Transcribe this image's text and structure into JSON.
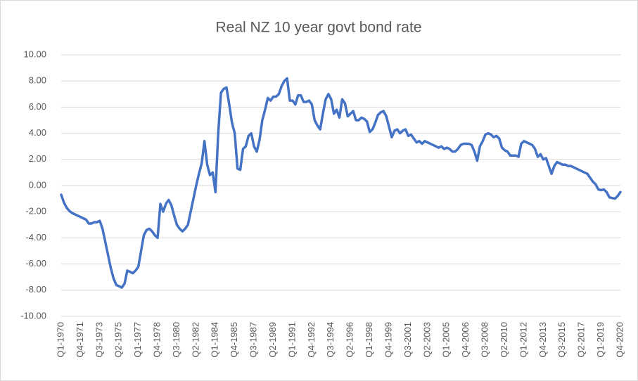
{
  "chart_data": {
    "type": "line",
    "title": "Real NZ 10 year govt bond rate",
    "categories": [
      "Q1-1970",
      null,
      null,
      null,
      null,
      null,
      null,
      "Q4-1971",
      null,
      null,
      null,
      null,
      null,
      null,
      "Q3-1973",
      null,
      null,
      null,
      null,
      null,
      null,
      "Q2-1975",
      null,
      null,
      null,
      null,
      null,
      null,
      "Q1-1977",
      null,
      null,
      null,
      null,
      null,
      null,
      "Q4-1978",
      null,
      null,
      null,
      null,
      null,
      null,
      "Q3-1980",
      null,
      null,
      null,
      null,
      null,
      null,
      "Q2-1982",
      null,
      null,
      null,
      null,
      null,
      null,
      "Q1-1984",
      null,
      null,
      null,
      null,
      null,
      null,
      "Q4-1985",
      null,
      null,
      null,
      null,
      null,
      null,
      "Q3-1987",
      null,
      null,
      null,
      null,
      null,
      null,
      "Q2-1989",
      null,
      null,
      null,
      null,
      null,
      null,
      "Q1-1991",
      null,
      null,
      null,
      null,
      null,
      null,
      "Q4-1992",
      null,
      null,
      null,
      null,
      null,
      null,
      "Q3-1994",
      null,
      null,
      null,
      null,
      null,
      null,
      "Q2-1996",
      null,
      null,
      null,
      null,
      null,
      null,
      "Q1-1998",
      null,
      null,
      null,
      null,
      null,
      null,
      "Q4-1999",
      null,
      null,
      null,
      null,
      null,
      null,
      "Q3-2001",
      null,
      null,
      null,
      null,
      null,
      null,
      "Q2-2003",
      null,
      null,
      null,
      null,
      null,
      null,
      "Q1-2005",
      null,
      null,
      null,
      null,
      null,
      null,
      "Q4-2006",
      null,
      null,
      null,
      null,
      null,
      null,
      "Q3-2008",
      null,
      null,
      null,
      null,
      null,
      null,
      "Q2-2010",
      null,
      null,
      null,
      null,
      null,
      null,
      "Q1-2012",
      null,
      null,
      null,
      null,
      null,
      null,
      "Q4-2013",
      null,
      null,
      null,
      null,
      null,
      null,
      "Q3-2015",
      null,
      null,
      null,
      null,
      null,
      null,
      "Q2-2017",
      null,
      null,
      null,
      null,
      null,
      null,
      "Q1-2019",
      null,
      null,
      null,
      null,
      null,
      null,
      "Q4-2020"
    ],
    "values": [
      -0.7,
      -1.3,
      -1.7,
      -1.95,
      -2.1,
      -2.2,
      -2.3,
      -2.4,
      -2.5,
      -2.6,
      -2.9,
      -2.9,
      -2.8,
      -2.8,
      -2.7,
      -3.3,
      -4.3,
      -5.3,
      -6.3,
      -7.1,
      -7.6,
      -7.7,
      -7.8,
      -7.5,
      -6.5,
      -6.6,
      -6.7,
      -6.5,
      -6.2,
      -5.0,
      -3.8,
      -3.4,
      -3.3,
      -3.5,
      -3.8,
      -4.0,
      -1.4,
      -2.0,
      -1.4,
      -1.1,
      -1.5,
      -2.3,
      -3.0,
      -3.3,
      -3.5,
      -3.3,
      -3.0,
      -2.0,
      -1.0,
      0.0,
      0.9,
      1.7,
      3.4,
      1.6,
      0.8,
      1.0,
      -0.5,
      4.0,
      7.1,
      7.4,
      7.5,
      6.2,
      4.8,
      4.0,
      1.3,
      1.2,
      2.8,
      3.0,
      3.8,
      4.0,
      3.0,
      2.6,
      3.5,
      5.0,
      5.8,
      6.7,
      6.5,
      6.8,
      6.8,
      7.0,
      7.6,
      8.0,
      8.2,
      6.5,
      6.5,
      6.2,
      6.9,
      6.9,
      6.4,
      6.4,
      6.5,
      6.2,
      5.0,
      4.6,
      4.3,
      5.5,
      6.6,
      7.0,
      6.6,
      5.5,
      5.8,
      5.2,
      6.6,
      6.3,
      5.3,
      5.5,
      5.7,
      5.0,
      5.0,
      5.2,
      5.1,
      4.9,
      4.1,
      4.3,
      4.8,
      5.4,
      5.6,
      5.7,
      5.3,
      4.5,
      3.7,
      4.2,
      4.3,
      4.0,
      4.2,
      4.3,
      3.8,
      3.9,
      3.6,
      3.3,
      3.4,
      3.2,
      3.4,
      3.3,
      3.2,
      3.1,
      3.0,
      2.9,
      3.0,
      2.8,
      2.9,
      2.8,
      2.6,
      2.6,
      2.8,
      3.1,
      3.2,
      3.2,
      3.2,
      3.1,
      2.6,
      1.9,
      3.0,
      3.4,
      3.9,
      4.0,
      3.9,
      3.7,
      3.8,
      3.6,
      2.9,
      2.7,
      2.6,
      2.3,
      2.3,
      2.3,
      2.2,
      3.2,
      3.4,
      3.3,
      3.2,
      3.1,
      2.8,
      2.2,
      2.4,
      2.0,
      2.1,
      1.5,
      0.9,
      1.5,
      1.8,
      1.7,
      1.6,
      1.6,
      1.5,
      1.5,
      1.4,
      1.3,
      1.2,
      1.1,
      1.0,
      0.9,
      0.6,
      0.3,
      0.1,
      -0.3,
      -0.35,
      -0.3,
      -0.5,
      -0.9,
      -0.95,
      -1.0,
      -0.8,
      -0.5
    ],
    "color": "#4472c4",
    "ylim": [
      -10,
      10
    ],
    "yticks": [
      {
        "value": -10,
        "label": "-10.00"
      },
      {
        "value": -8,
        "label": "-8.00"
      },
      {
        "value": -6,
        "label": "-6.00"
      },
      {
        "value": -4,
        "label": "-4.00"
      },
      {
        "value": -2,
        "label": "-2.00"
      },
      {
        "value": 0,
        "label": "0.00"
      },
      {
        "value": 2,
        "label": "2.00"
      },
      {
        "value": 4,
        "label": "4.00"
      },
      {
        "value": 6,
        "label": "6.00"
      },
      {
        "value": 8,
        "label": "8.00"
      },
      {
        "value": 10,
        "label": "10.00"
      }
    ],
    "grid": true
  }
}
